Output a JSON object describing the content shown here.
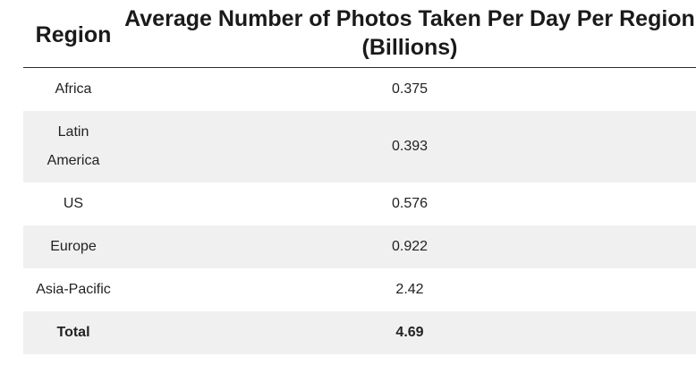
{
  "chart_data": {
    "type": "table",
    "columns": [
      "Region",
      "Average Number of Photos Taken Per Day Per Region (Billions)"
    ],
    "rows": [
      {
        "region": "Africa",
        "value": "0.375"
      },
      {
        "region": "Latin America",
        "value": "0.393"
      },
      {
        "region": "US",
        "value": "0.576"
      },
      {
        "region": "Europe",
        "value": "0.922"
      },
      {
        "region": "Asia-Pacific",
        "value": "2.42"
      },
      {
        "region": "Total",
        "value": "4.69"
      }
    ]
  }
}
